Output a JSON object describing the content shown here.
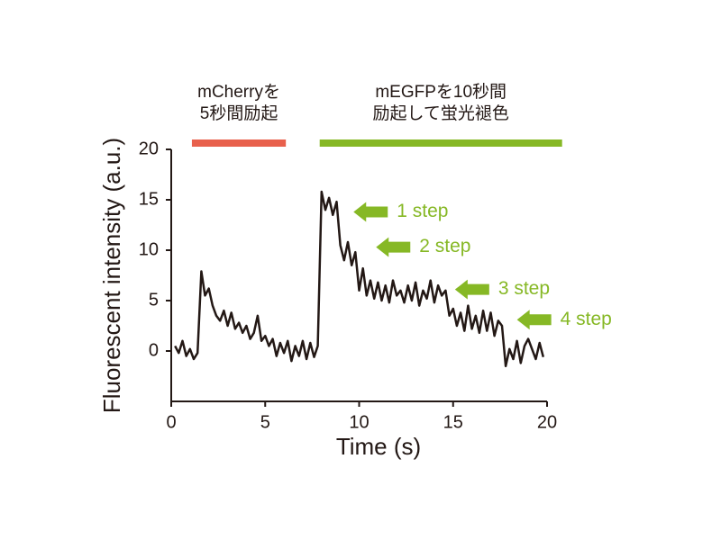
{
  "chart_data": {
    "type": "line",
    "xlabel": "Time (s)",
    "ylabel": "Fluorescent intensity (a.u.)",
    "xlim": [
      0,
      20
    ],
    "ylim": [
      -5,
      20
    ],
    "xticks": [
      0,
      5,
      10,
      15,
      20
    ],
    "yticks": [
      0,
      5,
      10,
      15,
      20
    ],
    "x": [
      0.2,
      0.4,
      0.6,
      0.8,
      1.0,
      1.2,
      1.4,
      1.6,
      1.8,
      2.0,
      2.2,
      2.4,
      2.6,
      2.8,
      3.0,
      3.2,
      3.4,
      3.6,
      3.8,
      4.0,
      4.2,
      4.4,
      4.6,
      4.8,
      5.0,
      5.2,
      5.4,
      5.6,
      5.8,
      6.0,
      6.2,
      6.4,
      6.6,
      6.8,
      7.0,
      7.2,
      7.4,
      7.6,
      7.8,
      8.0,
      8.2,
      8.4,
      8.6,
      8.8,
      9.0,
      9.2,
      9.4,
      9.6,
      9.8,
      10.0,
      10.2,
      10.4,
      10.6,
      10.8,
      11.0,
      11.2,
      11.4,
      11.6,
      11.8,
      12.0,
      12.2,
      12.4,
      12.6,
      12.8,
      13.0,
      13.2,
      13.4,
      13.6,
      13.8,
      14.0,
      14.2,
      14.4,
      14.6,
      14.8,
      15.0,
      15.2,
      15.4,
      15.6,
      15.8,
      16.0,
      16.2,
      16.4,
      16.6,
      16.8,
      17.0,
      17.2,
      17.4,
      17.6,
      17.8,
      18.0,
      18.2,
      18.4,
      18.6,
      18.8,
      19.0,
      19.2,
      19.4,
      19.6,
      19.8
    ],
    "series": [
      {
        "color": "#231815",
        "values": [
          0.5,
          -0.2,
          1.0,
          -0.5,
          0.2,
          -0.8,
          -0.2,
          7.9,
          5.5,
          6.2,
          4.5,
          3.5,
          3.0,
          4.0,
          2.5,
          3.8,
          2.2,
          2.8,
          1.8,
          2.5,
          1.2,
          1.8,
          3.5,
          1.0,
          1.5,
          0.5,
          1.2,
          -0.5,
          0.8,
          -0.2,
          1.0,
          -1.0,
          0.5,
          -0.5,
          1.0,
          -0.8,
          0.8,
          -0.6,
          0.5,
          15.8,
          14.0,
          15.2,
          13.5,
          14.8,
          10.5,
          9.0,
          10.8,
          8.5,
          9.8,
          6.0,
          8.2,
          5.5,
          7.0,
          5.2,
          6.8,
          5.0,
          6.5,
          4.8,
          7.0,
          5.5,
          6.0,
          4.8,
          6.5,
          5.0,
          6.8,
          4.5,
          6.0,
          5.2,
          7.0,
          4.8,
          6.5,
          5.5,
          6.0,
          3.5,
          4.2,
          2.5,
          3.8,
          2.0,
          4.5,
          2.2,
          3.5,
          1.8,
          4.0,
          2.0,
          3.8,
          1.5,
          3.0,
          2.5,
          -1.5,
          0.2,
          -0.8,
          1.0,
          -1.2,
          0.5,
          1.2,
          0.2,
          -0.8,
          0.8,
          -0.6
        ]
      }
    ],
    "excitation": [
      {
        "lines": [
          "mCherryを",
          "5秒間励起"
        ],
        "range": [
          1.1,
          6.1
        ],
        "color": "#e8604c"
      },
      {
        "lines": [
          "mEGFPを10秒間",
          "励起して蛍光褪色"
        ],
        "range": [
          7.9,
          20.8
        ],
        "color": "#86b825"
      }
    ],
    "annotations": [
      {
        "text": "1 step",
        "x": 9.7,
        "y": 13.8,
        "color": "#86b825"
      },
      {
        "text": "2 step",
        "x": 10.9,
        "y": 10.3,
        "color": "#86b825"
      },
      {
        "text": "3 step",
        "x": 15.1,
        "y": 6.1,
        "color": "#86b825"
      },
      {
        "text": "4 step",
        "x": 18.4,
        "y": 3.1,
        "color": "#86b825"
      }
    ]
  }
}
